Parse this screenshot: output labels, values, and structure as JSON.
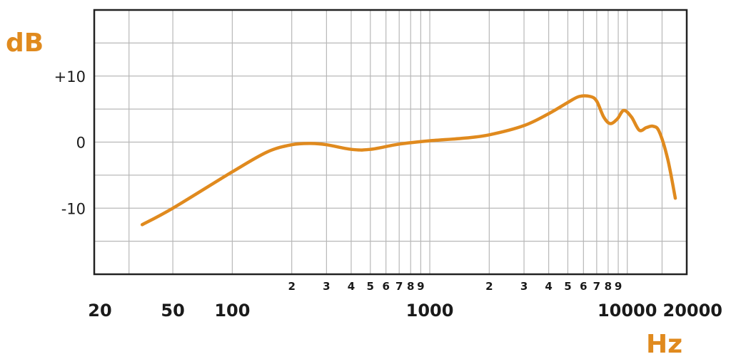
{
  "chart_data": {
    "type": "line",
    "title": "",
    "xlabel": "Hz",
    "ylabel": "dB",
    "x_scale": "log",
    "xlim": [
      20,
      20000
    ],
    "ylim": [
      -20,
      20
    ],
    "grid": true,
    "legend": "none",
    "line_color": "#e08a1e",
    "y_ticks": [
      {
        "value": 10,
        "label": "+10"
      },
      {
        "value": 0,
        "label": "0"
      },
      {
        "value": -10,
        "label": "-10"
      }
    ],
    "y_grid_values": [
      -15,
      -10,
      -5,
      0,
      5,
      10,
      15
    ],
    "x_major_ticks": [
      {
        "value": 20,
        "label": "20"
      },
      {
        "value": 50,
        "label": "50"
      },
      {
        "value": 100,
        "label": "100"
      },
      {
        "value": 1000,
        "label": "1000"
      },
      {
        "value": 10000,
        "label": "10000"
      },
      {
        "value": 20000,
        "label": "20000"
      }
    ],
    "x_minor_ticks": [
      {
        "value": 200,
        "label": "2"
      },
      {
        "value": 300,
        "label": "3"
      },
      {
        "value": 400,
        "label": "4"
      },
      {
        "value": 500,
        "label": "5"
      },
      {
        "value": 600,
        "label": "6"
      },
      {
        "value": 700,
        "label": "7"
      },
      {
        "value": 800,
        "label": "8"
      },
      {
        "value": 900,
        "label": "9"
      },
      {
        "value": 2000,
        "label": "2"
      },
      {
        "value": 3000,
        "label": "3"
      },
      {
        "value": 4000,
        "label": "4"
      },
      {
        "value": 5000,
        "label": "5"
      },
      {
        "value": 6000,
        "label": "6"
      },
      {
        "value": 7000,
        "label": "7"
      },
      {
        "value": 8000,
        "label": "8"
      },
      {
        "value": 9000,
        "label": "9"
      }
    ],
    "x_grid_values": [
      30,
      50,
      100,
      200,
      300,
      400,
      500,
      600,
      700,
      800,
      900,
      2000,
      3000,
      4000,
      5000,
      6000,
      7000,
      8000,
      9000,
      15000
    ],
    "series": [
      {
        "name": "",
        "x": [
          35,
          50,
          100,
          150,
          200,
          250,
          300,
          400,
          500,
          700,
          1000,
          1500,
          2000,
          3000,
          4000,
          5000,
          5700,
          6500,
          7000,
          7600,
          8200,
          8900,
          9600,
          10500,
          11500,
          12500,
          13500,
          14500,
          16000,
          17500
        ],
        "y": [
          -12.5,
          -10,
          -4.5,
          -1.5,
          -0.4,
          -0.2,
          -0.4,
          -1.1,
          -1.1,
          -0.3,
          0.2,
          0.6,
          1.1,
          2.5,
          4.3,
          6.0,
          6.9,
          6.9,
          6.2,
          3.8,
          2.8,
          3.5,
          4.8,
          3.8,
          1.8,
          2.2,
          2.4,
          1.6,
          -2.5,
          -8.5
        ]
      }
    ]
  }
}
